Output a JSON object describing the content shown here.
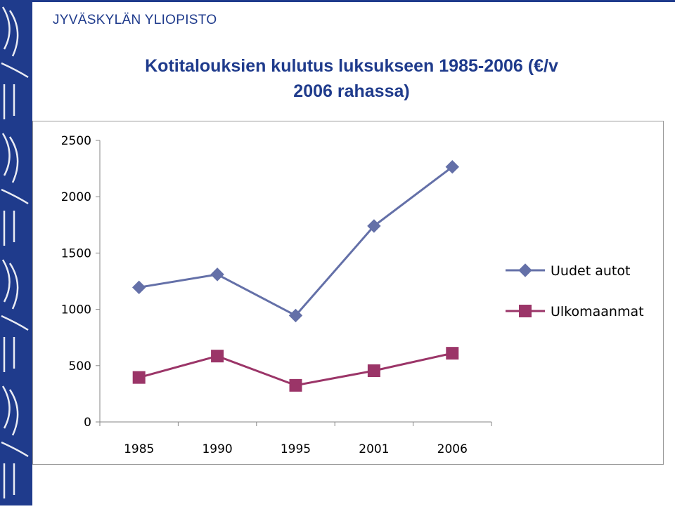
{
  "header": {
    "university": "JYVÄSKYLÄN YLIOPISTO",
    "title_line1": "Kotitalouksien kulutus luksukseen 1985-2006 (€/v",
    "title_line2": "2006 rahassa)"
  },
  "colors": {
    "brand": "#1f3b8c",
    "series_1": "#6470a8",
    "series_2": "#9b3568"
  },
  "chart_data": {
    "type": "line",
    "title": "Kotitalouksien kulutus luksukseen 1985-2006 (€/v 2006 rahassa)",
    "categories": [
      "1985",
      "1990",
      "1995",
      "2001",
      "2006"
    ],
    "series": [
      {
        "name": "Uudet autot",
        "values": [
          1195,
          1310,
          945,
          1740,
          2265
        ],
        "marker": "diamond"
      },
      {
        "name": "Ulkomaanmat",
        "values": [
          395,
          585,
          325,
          455,
          610
        ],
        "marker": "square"
      }
    ],
    "ylim": [
      0,
      2500
    ],
    "yticks": [
      0,
      500,
      1000,
      1500,
      2000,
      2500
    ],
    "grid": false,
    "legend": "right"
  }
}
